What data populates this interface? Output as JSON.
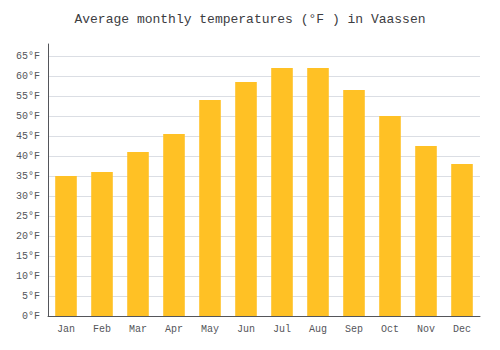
{
  "chart_data": {
    "type": "bar",
    "title": "Average monthly temperatures (°F ) in Vaassen",
    "categories": [
      "Jan",
      "Feb",
      "Mar",
      "Apr",
      "May",
      "Jun",
      "Jul",
      "Aug",
      "Sep",
      "Oct",
      "Nov",
      "Dec"
    ],
    "values": [
      35,
      36,
      41,
      45.5,
      54,
      58.5,
      62,
      62,
      56.5,
      50,
      42.5,
      38
    ],
    "color": "#FFC125",
    "ylim": [
      0,
      68
    ],
    "yticks": [
      {
        "value": 0,
        "label": "0°F"
      },
      {
        "value": 5,
        "label": "5°F"
      },
      {
        "value": 10,
        "label": "10°F"
      },
      {
        "value": 15,
        "label": "15°F"
      },
      {
        "value": 20,
        "label": "20°F"
      },
      {
        "value": 25,
        "label": "25°F"
      },
      {
        "value": 30,
        "label": "30°F"
      },
      {
        "value": 35,
        "label": "35°F"
      },
      {
        "value": 40,
        "label": "40°F"
      },
      {
        "value": 45,
        "label": "45°F"
      },
      {
        "value": 50,
        "label": "50°F"
      },
      {
        "value": 55,
        "label": "55°F"
      },
      {
        "value": 60,
        "label": "60°F"
      },
      {
        "value": 65,
        "label": "65°F"
      }
    ],
    "grid": true
  }
}
